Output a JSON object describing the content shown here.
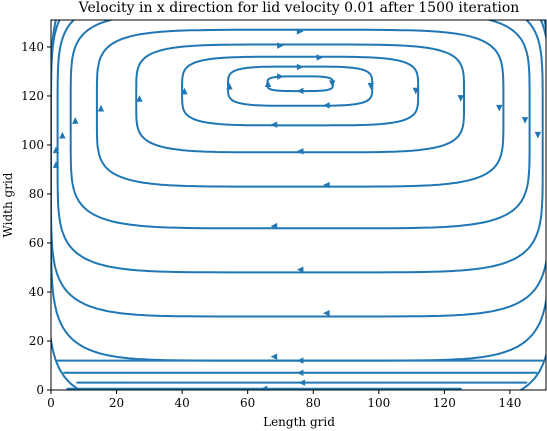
{
  "chart_data": {
    "type": "streamplot",
    "title": "Velocity in x direction for lid velocity 0.01 after 1500 iteration",
    "xlabel": "Length grid",
    "ylabel": "Width grid",
    "xlim": [
      0,
      151
    ],
    "ylim": [
      0,
      151
    ],
    "xticks": [
      "0",
      "20",
      "40",
      "60",
      "80",
      "100",
      "120",
      "140"
    ],
    "yticks": [
      "0",
      "20",
      "40",
      "60",
      "80",
      "100",
      "120",
      "140"
    ],
    "xtick_values": [
      0,
      20,
      40,
      60,
      80,
      100,
      120,
      140
    ],
    "ytick_values": [
      0,
      20,
      40,
      60,
      80,
      100,
      120,
      140
    ],
    "line_color": "#1f77b4",
    "flow_direction": "clockwise",
    "vortex_center": {
      "x": 76,
      "y": 125
    },
    "streamlines": [
      {
        "cx": 76,
        "cy": 125,
        "rx": 10,
        "ry": 3
      },
      {
        "cx": 76,
        "cy": 124,
        "rx": 22,
        "ry": 8
      },
      {
        "cx": 76,
        "cy": 122,
        "rx": 36,
        "ry": 14
      },
      {
        "cx": 76,
        "cy": 119,
        "rx": 50,
        "ry": 22
      },
      {
        "cx": 76,
        "cy": 115,
        "rx": 62,
        "ry": 32
      },
      {
        "cx": 76,
        "cy": 110,
        "rx": 70,
        "ry": 44
      },
      {
        "cx": 76,
        "cy": 104,
        "rx": 74,
        "ry": 56
      },
      {
        "cx": 76,
        "cy": 98,
        "rx": 76,
        "ry": 68
      },
      {
        "cx": 76,
        "cy": 92,
        "rx": 76,
        "ry": 80
      },
      {
        "cx": 76,
        "cy": 86,
        "rx": 77,
        "ry": 92
      },
      {
        "cx": 76,
        "cy": 80,
        "rx": 78,
        "ry": 104
      }
    ],
    "bottom_lines": [
      {
        "x": [
          5,
          125
        ],
        "y": [
          0.5,
          0.5
        ]
      },
      {
        "x": [
          8,
          145
        ],
        "y": [
          3,
          3
        ]
      },
      {
        "x": [
          4,
          148
        ],
        "y": [
          7,
          7
        ]
      },
      {
        "x": [
          2,
          150
        ],
        "y": [
          12,
          12
        ]
      }
    ]
  }
}
